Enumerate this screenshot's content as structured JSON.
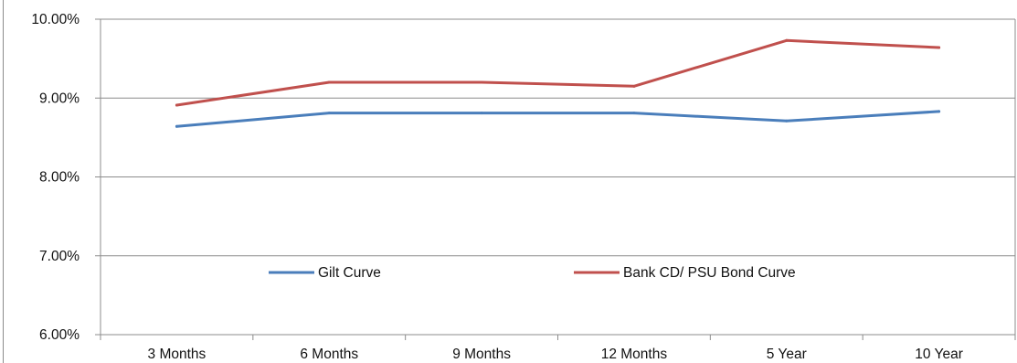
{
  "chart_data": {
    "type": "line",
    "title": "",
    "xlabel": "",
    "ylabel": "",
    "categories": [
      "3 Months",
      "6 Months",
      "9 Months",
      "12 Months",
      "5 Year",
      "10 Year"
    ],
    "ylim": [
      6.0,
      10.0
    ],
    "y_ticks": [
      6.0,
      7.0,
      8.0,
      9.0,
      10.0
    ],
    "y_tick_labels": [
      "6.00%",
      "7.00%",
      "8.00%",
      "9.00%",
      "10.00%"
    ],
    "grid": true,
    "legend_placement": "inside-center",
    "series": [
      {
        "name": "Gilt Curve",
        "color": "#4a7ebb",
        "values": [
          8.64,
          8.81,
          8.81,
          8.81,
          8.71,
          8.83
        ]
      },
      {
        "name": "Bank CD/ PSU Bond Curve",
        "color": "#c0504d",
        "values": [
          8.91,
          9.2,
          9.2,
          9.15,
          9.73,
          9.64
        ]
      }
    ]
  }
}
